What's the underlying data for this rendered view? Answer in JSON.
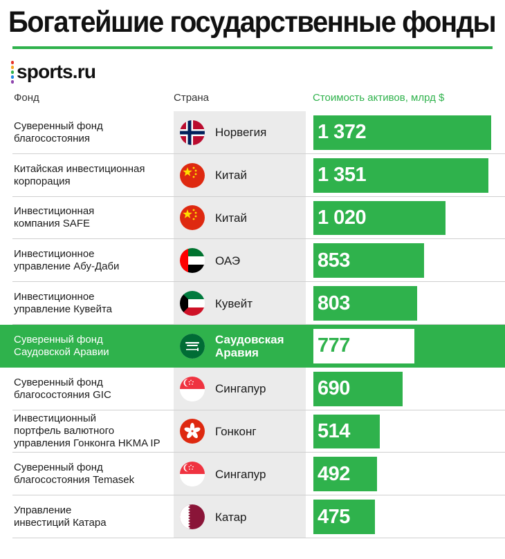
{
  "title": "Богатейшие государственные фонды",
  "logo": {
    "text": "sports.ru",
    "dot_colors": [
      "#e6332a",
      "#f5a623",
      "#2fb24c",
      "#1e88e5",
      "#8e44ad"
    ]
  },
  "columns": {
    "fund": "Фонд",
    "country": "Страна",
    "value": "Стоимость активов, млрд $"
  },
  "colors": {
    "accent": "#2fb24c",
    "country_bg": "#ebebeb",
    "divider": "#cfcfcf"
  },
  "chart_data": {
    "type": "bar",
    "orientation": "horizontal",
    "title": "Богатейшие государственные фонды",
    "value_label": "Стоимость активов, млрд $",
    "xlim": [
      0,
      1372
    ],
    "highlighted_index": 5,
    "rows": [
      {
        "fund": [
          "Суверенный фонд",
          "благосостояния"
        ],
        "country": [
          "Норвегия"
        ],
        "flag": "norway-flag",
        "value": 1372,
        "value_text": "1 372"
      },
      {
        "fund": [
          "Китайская инвестиционная",
          "корпорация"
        ],
        "country": [
          "Китай"
        ],
        "flag": "china-flag",
        "value": 1351,
        "value_text": "1 351"
      },
      {
        "fund": [
          "Инвестиционная",
          "компания SAFE"
        ],
        "country": [
          "Китай"
        ],
        "flag": "china-flag",
        "value": 1020,
        "value_text": "1 020"
      },
      {
        "fund": [
          "Инвестиционное",
          "управление Абу-Даби"
        ],
        "country": [
          "ОАЭ"
        ],
        "flag": "uae-flag",
        "value": 853,
        "value_text": "853"
      },
      {
        "fund": [
          "Инвестиционное",
          "управление Кувейта"
        ],
        "country": [
          "Кувейт"
        ],
        "flag": "kuwait-flag",
        "value": 803,
        "value_text": "803"
      },
      {
        "fund": [
          "Суверенный фонд",
          "Саудовской Аравии"
        ],
        "country": [
          "Саудовская",
          "Аравия"
        ],
        "flag": "saudi-flag",
        "value": 777,
        "value_text": "777"
      },
      {
        "fund": [
          "Суверенный фонд",
          "благосостояния GIC"
        ],
        "country": [
          "Сингапур"
        ],
        "flag": "singapore-flag",
        "value": 690,
        "value_text": "690"
      },
      {
        "fund": [
          "Инвестиционный",
          "портфель валютного",
          "управления Гонконга HKMA IP"
        ],
        "country": [
          "Гонконг"
        ],
        "flag": "hongkong-flag",
        "value": 514,
        "value_text": "514"
      },
      {
        "fund": [
          "Суверенный фонд",
          "благосостояния Temasek"
        ],
        "country": [
          "Сингапур"
        ],
        "flag": "singapore-flag",
        "value": 492,
        "value_text": "492"
      },
      {
        "fund": [
          "Управление",
          "инвестиций Катара"
        ],
        "country": [
          "Катар"
        ],
        "flag": "qatar-flag",
        "value": 475,
        "value_text": "475"
      }
    ]
  }
}
